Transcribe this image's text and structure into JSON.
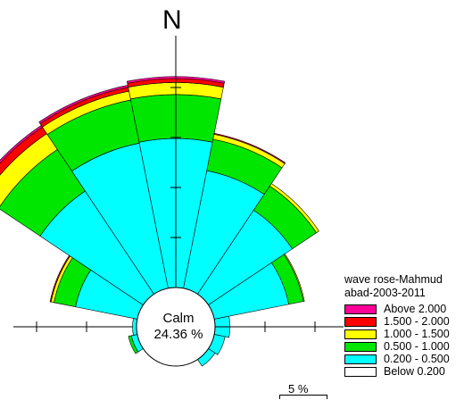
{
  "chart_data": {
    "type": "wind-rose",
    "title": "wave rose-Mahmud abad-2003-2011",
    "north_label": "N",
    "calm": {
      "label": "Calm",
      "value": "24.36 %"
    },
    "scale": {
      "label": "5 %",
      "value": 5
    },
    "bins": [
      {
        "label": "Below  0.200",
        "color": "#ffffff"
      },
      {
        "label": "0.200 - 0.500",
        "color": "#00ffff"
      },
      {
        "label": "0.500 - 1.000",
        "color": "#00e600"
      },
      {
        "label": "1.000 - 1.500",
        "color": "#ffff00"
      },
      {
        "label": "1.500 - 2.000",
        "color": "#ff0000"
      },
      {
        "label": "Above  2.000",
        "color": "#ff0099"
      }
    ],
    "sectors": [
      {
        "direction": 0,
        "cumulative": [
          0,
          14.9,
          19.3,
          20.5,
          20.9,
          21.1
        ]
      },
      {
        "direction": 22.5,
        "cumulative": [
          0,
          12.0,
          15.2,
          15.7,
          15.8,
          15.8
        ]
      },
      {
        "direction": 45,
        "cumulative": [
          0,
          10.1,
          13.0,
          13.3,
          13.3,
          13.3
        ]
      },
      {
        "direction": 67.5,
        "cumulative": [
          0,
          7.6,
          9.1,
          9.2,
          9.2,
          9.2
        ]
      },
      {
        "direction": 90,
        "cumulative": [
          0,
          1.5,
          1.5,
          1.5,
          1.5,
          1.5
        ]
      },
      {
        "direction": 112.5,
        "cumulative": [
          0,
          1.1,
          1.1,
          1.1,
          1.1,
          1.1
        ]
      },
      {
        "direction": 135,
        "cumulative": [
          0,
          0.8,
          0.8,
          0.8,
          0.8,
          0.8
        ]
      },
      {
        "direction": 247.5,
        "cumulative": [
          0,
          0.6,
          0.9,
          0.9,
          0.9,
          0.9
        ]
      },
      {
        "direction": 270,
        "cumulative": [
          0,
          0.4,
          0.4,
          0.4,
          0.4,
          0.4
        ]
      },
      {
        "direction": 292.5,
        "cumulative": [
          0,
          6.3,
          8.5,
          8.8,
          8.9,
          8.9
        ]
      },
      {
        "direction": 315,
        "cumulative": [
          0,
          12.4,
          17.4,
          19.3,
          20.1,
          20.3
        ]
      },
      {
        "direction": 337.5,
        "cumulative": [
          0,
          14.8,
          19.2,
          20.1,
          20.5,
          20.7
        ]
      }
    ]
  }
}
